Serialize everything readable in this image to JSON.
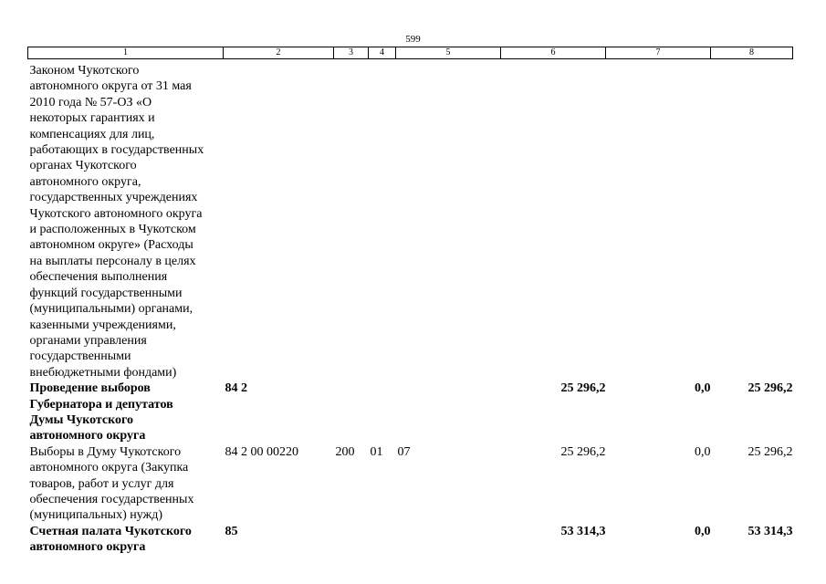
{
  "page_number": "599",
  "table": {
    "header": [
      "1",
      "2",
      "3",
      "4",
      "5",
      "6",
      "7",
      "8"
    ],
    "rows": [
      {
        "bold": false,
        "cells": [
          [
            "Законом Чукотского",
            "автономного округа от 31 мая",
            "2010 года № 57-ОЗ «О",
            "некоторых гарантиях и",
            "компенсациях для лиц,",
            "работающих в государственных",
            "органах Чукотского",
            "автономного округа,",
            "государственных учреждениях",
            "Чукотского автономного округа",
            "и расположенных в Чукотском",
            "автономном округе» (Расходы",
            "на выплаты персоналу в целях",
            "обеспечения выполнения",
            "функций государственными",
            "(муниципальными) органами,",
            "казенными учреждениями,",
            "органами управления",
            "государственными",
            "внебюджетными фондами)"
          ],
          null,
          null,
          null,
          null,
          null,
          null,
          null
        ]
      },
      {
        "bold": true,
        "cells": [
          [
            "Проведение выборов",
            "Губернатора и депутатов",
            "Думы Чукотского",
            "автономного округа"
          ],
          "84 2",
          null,
          null,
          null,
          "25 296,2",
          "0,0",
          "25 296,2"
        ]
      },
      {
        "bold": false,
        "cells": [
          [
            "Выборы в Думу Чукотского",
            "автономного округа (Закупка",
            "товаров, работ и услуг для",
            "обеспечения государственных",
            "(муниципальных) нужд)"
          ],
          "84 2 00 00220",
          "200",
          "01",
          "07",
          "25 296,2",
          "0,0",
          "25 296,2"
        ]
      },
      {
        "bold": true,
        "cells": [
          [
            "Счетная палата Чукотского",
            "автономного округа"
          ],
          "85",
          null,
          null,
          null,
          "53 314,3",
          "0,0",
          "53 314,3"
        ]
      }
    ]
  }
}
